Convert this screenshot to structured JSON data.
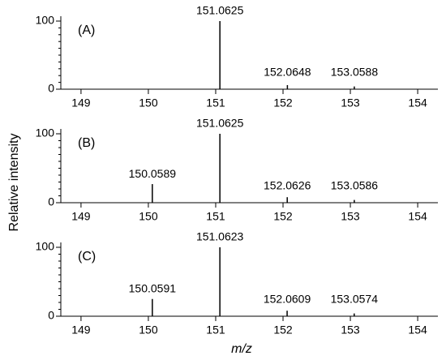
{
  "ylabel": "Relative intensity",
  "xlabel": "m/z",
  "chart_data": [
    {
      "type": "stem",
      "title": "(A)",
      "color": "#000000",
      "x": [
        151.0625,
        152.0648,
        153.0588
      ],
      "values": [
        100,
        6,
        4
      ],
      "xlim": [
        148.7,
        154.3
      ],
      "xticks": [
        149,
        150,
        151,
        152,
        153,
        154
      ],
      "ylim": [
        0,
        100
      ],
      "yticks": [
        0,
        100
      ],
      "yminorticks": [
        10,
        20,
        30,
        40,
        50,
        60,
        70,
        80,
        90
      ]
    },
    {
      "type": "stem",
      "title": "(B)",
      "color": "#000000",
      "x": [
        150.0589,
        151.0625,
        152.0626,
        153.0586
      ],
      "values": [
        27,
        100,
        8,
        4
      ],
      "xlim": [
        148.7,
        154.3
      ],
      "xticks": [
        149,
        150,
        151,
        152,
        153,
        154
      ],
      "ylim": [
        0,
        100
      ],
      "yticks": [
        0,
        100
      ],
      "yminorticks": [
        10,
        20,
        30,
        40,
        50,
        60,
        70,
        80,
        90
      ]
    },
    {
      "type": "stem",
      "title": "(C)",
      "color": "#000000",
      "x": [
        150.0591,
        151.0623,
        152.0609,
        153.0574
      ],
      "values": [
        25,
        100,
        8,
        4
      ],
      "xlim": [
        148.7,
        154.3
      ],
      "xticks": [
        149,
        150,
        151,
        152,
        153,
        154
      ],
      "ylim": [
        0,
        100
      ],
      "yticks": [
        0,
        100
      ],
      "yminorticks": [
        10,
        20,
        30,
        40,
        50,
        60,
        70,
        80,
        90
      ]
    }
  ]
}
